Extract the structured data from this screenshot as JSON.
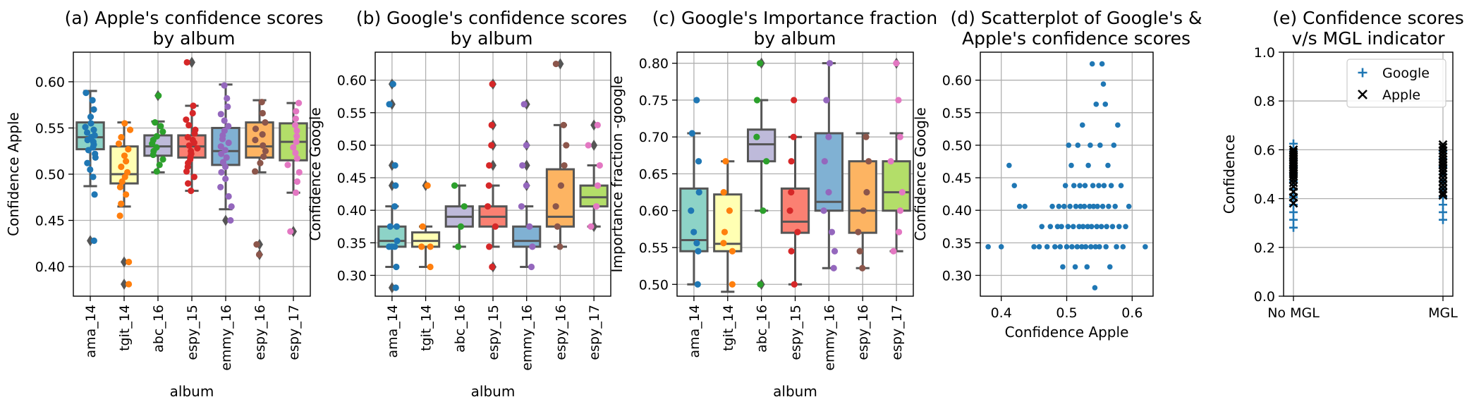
{
  "albums": [
    "ama_14",
    "tgit_14",
    "abc_16",
    "espy_15",
    "emmy_16",
    "espy_16",
    "espy_17"
  ],
  "palette": {
    "points": [
      "#1f77b4",
      "#ff7f0e",
      "#2ca02c",
      "#d62728",
      "#9467bd",
      "#8c564b",
      "#e377c2"
    ],
    "boxes": [
      "#8dd3c7",
      "#ffffb3",
      "#bebada",
      "#fb8072",
      "#80b1d3",
      "#fdb462",
      "#b3de69"
    ],
    "box_line": "#555555",
    "scatter": "#1f77b4",
    "google_marker": "#1f77b4",
    "apple_marker": "#000000",
    "grid": "#b0b0b0"
  },
  "chart_data": [
    {
      "id": "a",
      "type": "box",
      "title_lines": [
        "(a) Apple's confidence scores",
        "by album"
      ],
      "xlabel": "album",
      "ylabel": "Confidence Apple",
      "ylim": [
        0.368,
        0.632
      ],
      "yticks": [
        0.4,
        0.45,
        0.5,
        0.55,
        0.6
      ],
      "ytick_labels": [
        "0.40",
        "0.45",
        "0.50",
        "0.55",
        "0.60"
      ],
      "categories": [
        "ama_14",
        "tgit_14",
        "abc_16",
        "espy_15",
        "emmy_16",
        "espy_16",
        "espy_17"
      ],
      "boxes": [
        {
          "q1": 0.527,
          "median": 0.54,
          "q3": 0.556,
          "wlo": 0.487,
          "whi": 0.59
        },
        {
          "q1": 0.49,
          "median": 0.5,
          "q3": 0.53,
          "wlo": 0.465,
          "whi": 0.556
        },
        {
          "q1": 0.52,
          "median": 0.53,
          "q3": 0.542,
          "wlo": 0.502,
          "whi": 0.557
        },
        {
          "q1": 0.518,
          "median": 0.53,
          "q3": 0.542,
          "wlo": 0.482,
          "whi": 0.574
        },
        {
          "q1": 0.51,
          "median": 0.525,
          "q3": 0.55,
          "wlo": 0.462,
          "whi": 0.597
        },
        {
          "q1": 0.518,
          "median": 0.53,
          "q3": 0.556,
          "wlo": 0.502,
          "whi": 0.58
        },
        {
          "q1": 0.515,
          "median": 0.535,
          "q3": 0.555,
          "wlo": 0.48,
          "whi": 0.577
        }
      ],
      "fliers": [
        [
          0.428
        ],
        [
          0.405,
          0.381
        ],
        [
          0.585
        ],
        [
          0.621
        ],
        [
          0.45
        ],
        [
          0.424,
          0.413
        ],
        [
          0.438
        ]
      ],
      "points": [
        [
          0.428,
          0.478,
          0.497,
          0.505,
          0.512,
          0.518,
          0.522,
          0.526,
          0.529,
          0.532,
          0.535,
          0.537,
          0.54,
          0.542,
          0.545,
          0.548,
          0.551,
          0.555,
          0.562,
          0.57,
          0.58,
          0.588
        ],
        [
          0.381,
          0.405,
          0.455,
          0.468,
          0.478,
          0.486,
          0.492,
          0.497,
          0.502,
          0.508,
          0.514,
          0.52,
          0.527,
          0.533,
          0.54,
          0.548,
          0.555
        ],
        [
          0.503,
          0.51,
          0.516,
          0.521,
          0.525,
          0.529,
          0.533,
          0.537,
          0.541,
          0.546,
          0.552,
          0.556,
          0.585
        ],
        [
          0.482,
          0.49,
          0.497,
          0.503,
          0.508,
          0.512,
          0.516,
          0.519,
          0.522,
          0.525,
          0.528,
          0.531,
          0.534,
          0.537,
          0.54,
          0.544,
          0.548,
          0.553,
          0.559,
          0.566,
          0.574,
          0.621
        ],
        [
          0.45,
          0.465,
          0.476,
          0.486,
          0.495,
          0.502,
          0.508,
          0.513,
          0.518,
          0.522,
          0.526,
          0.53,
          0.534,
          0.538,
          0.542,
          0.547,
          0.552,
          0.558,
          0.565,
          0.573,
          0.582,
          0.596
        ],
        [
          0.413,
          0.424,
          0.503,
          0.512,
          0.519,
          0.525,
          0.531,
          0.537,
          0.543,
          0.549,
          0.556,
          0.566,
          0.578
        ],
        [
          0.438,
          0.48,
          0.492,
          0.502,
          0.51,
          0.517,
          0.523,
          0.529,
          0.535,
          0.541,
          0.547,
          0.553,
          0.56,
          0.568,
          0.577
        ]
      ]
    },
    {
      "id": "b",
      "type": "box",
      "title_lines": [
        "(b) Google's confidence scores",
        "by album"
      ],
      "xlabel": "album",
      "ylabel": "Confidence Google",
      "ylim": [
        0.268,
        0.643
      ],
      "yticks": [
        0.3,
        0.35,
        0.4,
        0.45,
        0.5,
        0.55,
        0.6
      ],
      "ytick_labels": [
        "0.30",
        "0.35",
        "0.40",
        "0.45",
        "0.50",
        "0.55",
        "0.60"
      ],
      "categories": [
        "ama_14",
        "tgit_14",
        "abc_16",
        "espy_15",
        "emmy_16",
        "espy_16",
        "espy_17"
      ],
      "boxes": [
        {
          "q1": 0.344,
          "median": 0.353,
          "q3": 0.375,
          "wlo": 0.313,
          "whi": 0.406
        },
        {
          "q1": 0.344,
          "median": 0.353,
          "q3": 0.366,
          "wlo": 0.313,
          "whi": 0.375
        },
        {
          "q1": 0.375,
          "median": 0.39,
          "q3": 0.406,
          "wlo": 0.344,
          "whi": 0.438
        },
        {
          "q1": 0.375,
          "median": 0.39,
          "q3": 0.406,
          "wlo": 0.344,
          "whi": 0.438
        },
        {
          "q1": 0.344,
          "median": 0.353,
          "q3": 0.375,
          "wlo": 0.313,
          "whi": 0.406
        },
        {
          "q1": 0.375,
          "median": 0.39,
          "q3": 0.463,
          "wlo": 0.344,
          "whi": 0.531
        },
        {
          "q1": 0.406,
          "median": 0.42,
          "q3": 0.438,
          "wlo": 0.375,
          "whi": 0.469
        }
      ],
      "fliers": [
        [
          0.281,
          0.438,
          0.469,
          0.563,
          0.594
        ],
        [
          0.438
        ],
        [],
        [
          0.313,
          0.469,
          0.5,
          0.531,
          0.594
        ],
        [
          0.438,
          0.469,
          0.5,
          0.563
        ],
        [
          0.625
        ],
        [
          0.375,
          0.5,
          0.531
        ]
      ],
      "points": [
        [
          0.281,
          0.313,
          0.344,
          0.344,
          0.344,
          0.353,
          0.375,
          0.375,
          0.406,
          0.438,
          0.469,
          0.563,
          0.594
        ],
        [
          0.313,
          0.344,
          0.344,
          0.375,
          0.438
        ],
        [
          0.344,
          0.375,
          0.406,
          0.438
        ],
        [
          0.313,
          0.344,
          0.375,
          0.406,
          0.438,
          0.469,
          0.5,
          0.531,
          0.594
        ],
        [
          0.313,
          0.344,
          0.375,
          0.406,
          0.438,
          0.469,
          0.5,
          0.563
        ],
        [
          0.344,
          0.375,
          0.406,
          0.438,
          0.469,
          0.5,
          0.531,
          0.625
        ],
        [
          0.375,
          0.406,
          0.438,
          0.469,
          0.5,
          0.531
        ]
      ]
    },
    {
      "id": "c",
      "type": "box",
      "title_lines": [
        "(c) Google's Importance fraction",
        "by album"
      ],
      "xlabel": "album",
      "ylabel": "Importance fraction -google",
      "ylim": [
        0.484,
        0.815
      ],
      "yticks": [
        0.5,
        0.55,
        0.6,
        0.65,
        0.7,
        0.75,
        0.8
      ],
      "ytick_labels": [
        "0.50",
        "0.55",
        "0.60",
        "0.65",
        "0.70",
        "0.75",
        "0.80"
      ],
      "categories": [
        "ama_14",
        "tgit_14",
        "abc_16",
        "espy_15",
        "emmy_16",
        "espy_16",
        "espy_17"
      ],
      "boxes": [
        {
          "q1": 0.545,
          "median": 0.56,
          "q3": 0.63,
          "wlo": 0.5,
          "whi": 0.705
        },
        {
          "q1": 0.545,
          "median": 0.555,
          "q3": 0.622,
          "wlo": 0.49,
          "whi": 0.667
        },
        {
          "q1": 0.667,
          "median": 0.69,
          "q3": 0.71,
          "wlo": 0.6,
          "whi": 0.75
        },
        {
          "q1": 0.57,
          "median": 0.585,
          "q3": 0.63,
          "wlo": 0.5,
          "whi": 0.7
        },
        {
          "q1": 0.6,
          "median": 0.612,
          "q3": 0.705,
          "wlo": 0.522,
          "whi": 0.8
        },
        {
          "q1": 0.57,
          "median": 0.6,
          "q3": 0.667,
          "wlo": 0.522,
          "whi": 0.705
        },
        {
          "q1": 0.6,
          "median": 0.625,
          "q3": 0.667,
          "wlo": 0.545,
          "whi": 0.705
        }
      ],
      "fliers": [
        [],
        [],
        [
          0.5,
          0.8
        ],
        [],
        [],
        [],
        [
          0.8
        ]
      ],
      "points": [
        [
          0.5,
          0.545,
          0.556,
          0.571,
          0.6,
          0.625,
          0.667,
          0.705,
          0.75
        ],
        [
          0.5,
          0.545,
          0.556,
          0.571,
          0.6,
          0.625,
          0.667
        ],
        [
          0.5,
          0.6,
          0.667,
          0.7,
          0.75,
          0.8
        ],
        [
          0.5,
          0.545,
          0.571,
          0.6,
          0.625,
          0.667,
          0.7,
          0.75
        ],
        [
          0.522,
          0.545,
          0.571,
          0.6,
          0.625,
          0.667,
          0.7,
          0.75,
          0.8
        ],
        [
          0.522,
          0.545,
          0.571,
          0.6,
          0.625,
          0.667,
          0.7
        ],
        [
          0.545,
          0.571,
          0.6,
          0.625,
          0.667,
          0.7,
          0.75,
          0.8
        ]
      ]
    },
    {
      "id": "d",
      "type": "scatter",
      "title_lines": [
        "(d) Scatterplot of Google's &",
        "Apple's confidence scores"
      ],
      "xlabel": "Confidence Apple",
      "ylabel": "Confidence Google",
      "xlim": [
        0.368,
        0.632
      ],
      "ylim": [
        0.268,
        0.643
      ],
      "xticks": [
        0.4,
        0.5,
        0.6
      ],
      "xtick_labels": [
        "0.4",
        "0.5",
        "0.6"
      ],
      "yticks": [
        0.3,
        0.35,
        0.4,
        0.45,
        0.5,
        0.55,
        0.6
      ],
      "ytick_labels": [
        "0.30",
        "0.35",
        "0.40",
        "0.45",
        "0.50",
        "0.55",
        "0.60"
      ],
      "points": [
        [
          0.38,
          0.344
        ],
        [
          0.4,
          0.344
        ],
        [
          0.412,
          0.469
        ],
        [
          0.42,
          0.438
        ],
        [
          0.428,
          0.406
        ],
        [
          0.436,
          0.406
        ],
        [
          0.45,
          0.344
        ],
        [
          0.458,
          0.344
        ],
        [
          0.462,
          0.375
        ],
        [
          0.47,
          0.344
        ],
        [
          0.475,
          0.375
        ],
        [
          0.478,
          0.406
        ],
        [
          0.482,
          0.344
        ],
        [
          0.486,
          0.375
        ],
        [
          0.488,
          0.406
        ],
        [
          0.49,
          0.344
        ],
        [
          0.492,
          0.375
        ],
        [
          0.494,
          0.313
        ],
        [
          0.496,
          0.406
        ],
        [
          0.498,
          0.438
        ],
        [
          0.5,
          0.344
        ],
        [
          0.502,
          0.375
        ],
        [
          0.503,
          0.5
        ],
        [
          0.505,
          0.406
        ],
        [
          0.507,
          0.469
        ],
        [
          0.508,
          0.344
        ],
        [
          0.51,
          0.375
        ],
        [
          0.511,
          0.438
        ],
        [
          0.513,
          0.313
        ],
        [
          0.514,
          0.406
        ],
        [
          0.516,
          0.344
        ],
        [
          0.517,
          0.5
        ],
        [
          0.519,
          0.375
        ],
        [
          0.52,
          0.438
        ],
        [
          0.521,
          0.406
        ],
        [
          0.523,
          0.344
        ],
        [
          0.524,
          0.531
        ],
        [
          0.525,
          0.375
        ],
        [
          0.527,
          0.406
        ],
        [
          0.528,
          0.438
        ],
        [
          0.529,
          0.344
        ],
        [
          0.531,
          0.313
        ],
        [
          0.532,
          0.375
        ],
        [
          0.533,
          0.469
        ],
        [
          0.535,
          0.406
        ],
        [
          0.536,
          0.5
        ],
        [
          0.537,
          0.344
        ],
        [
          0.538,
          0.375
        ],
        [
          0.539,
          0.625
        ],
        [
          0.54,
          0.438
        ],
        [
          0.541,
          0.406
        ],
        [
          0.543,
          0.281
        ],
        [
          0.544,
          0.344
        ],
        [
          0.545,
          0.563
        ],
        [
          0.546,
          0.375
        ],
        [
          0.547,
          0.406
        ],
        [
          0.549,
          0.438
        ],
        [
          0.55,
          0.344
        ],
        [
          0.551,
          0.5
        ],
        [
          0.553,
          0.375
        ],
        [
          0.554,
          0.625
        ],
        [
          0.555,
          0.406
        ],
        [
          0.556,
          0.594
        ],
        [
          0.557,
          0.438
        ],
        [
          0.559,
          0.563
        ],
        [
          0.56,
          0.344
        ],
        [
          0.561,
          0.375
        ],
        [
          0.563,
          0.469
        ],
        [
          0.564,
          0.406
        ],
        [
          0.566,
          0.313
        ],
        [
          0.568,
          0.438
        ],
        [
          0.57,
          0.375
        ],
        [
          0.572,
          0.5
        ],
        [
          0.574,
          0.406
        ],
        [
          0.576,
          0.344
        ],
        [
          0.578,
          0.531
        ],
        [
          0.58,
          0.375
        ],
        [
          0.583,
          0.438
        ],
        [
          0.586,
          0.344
        ],
        [
          0.59,
          0.375
        ],
        [
          0.595,
          0.406
        ],
        [
          0.62,
          0.344
        ]
      ]
    },
    {
      "id": "e",
      "type": "strip",
      "title_lines": [
        "(e) Confidence scores",
        "v/s MGL indicator"
      ],
      "ylabel": "Confidence",
      "ylim": [
        0.0,
        1.0
      ],
      "yticks": [
        0.0,
        0.2,
        0.4,
        0.6,
        0.8,
        1.0
      ],
      "ytick_labels": [
        "0.0",
        "0.2",
        "0.4",
        "0.6",
        "0.8",
        "1.0"
      ],
      "categories": [
        "No MGL",
        "MGL"
      ],
      "legend_position": "top-right",
      "series": [
        {
          "name": "Google",
          "marker": "plus",
          "values": [
            [
              0.281,
              0.313,
              0.344,
              0.375,
              0.406,
              0.438,
              0.469,
              0.5,
              0.531,
              0.563,
              0.594,
              0.625
            ],
            [
              0.313,
              0.344,
              0.375,
              0.406,
              0.438,
              0.469,
              0.5,
              0.531,
              0.563,
              0.594
            ]
          ]
        },
        {
          "name": "Apple",
          "marker": "x",
          "values": [
            [
              0.381,
              0.405,
              0.428,
              0.45,
              0.465,
              0.478,
              0.49,
              0.5,
              0.51,
              0.52,
              0.53,
              0.54,
              0.55,
              0.56,
              0.57,
              0.58,
              0.59,
              0.6
            ],
            [
              0.413,
              0.424,
              0.44,
              0.455,
              0.47,
              0.485,
              0.5,
              0.512,
              0.525,
              0.537,
              0.548,
              0.56,
              0.572,
              0.585,
              0.597,
              0.61,
              0.621
            ]
          ]
        }
      ]
    }
  ]
}
